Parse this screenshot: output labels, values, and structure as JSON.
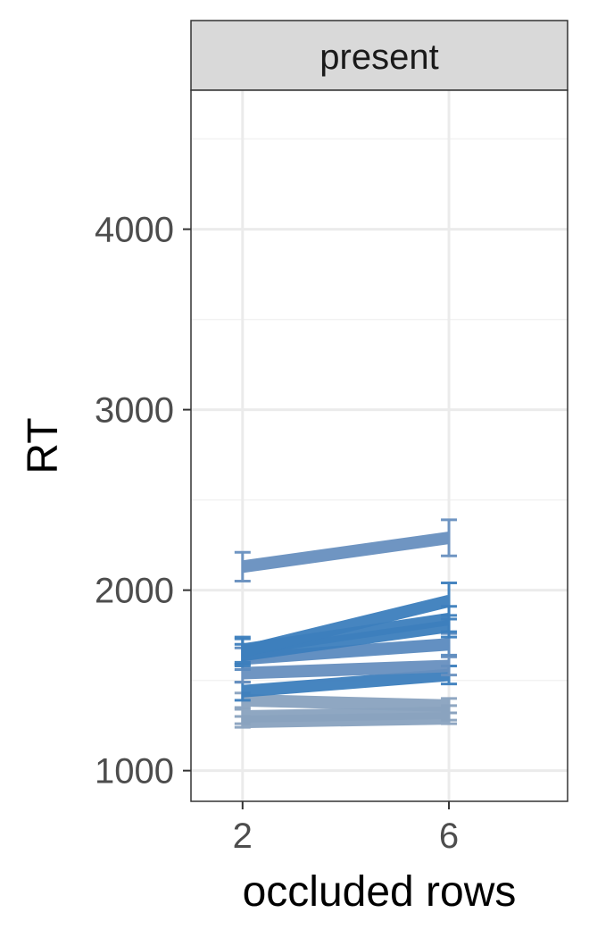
{
  "chart_data": {
    "type": "line",
    "facet_label": "present",
    "xlabel": "occluded rows",
    "ylabel": "RT",
    "x": [
      2,
      6
    ],
    "x_ticks": [
      "2",
      "6"
    ],
    "y_ticks": [
      "1000",
      "2000",
      "3000",
      "4000"
    ],
    "ylim": [
      830,
      4770
    ],
    "grid": true,
    "series": [
      {
        "values": [
          2130,
          2290
        ],
        "error": [
          80,
          100
        ],
        "color": "#6890bf"
      },
      {
        "values": [
          1660,
          1940
        ],
        "error": [
          70,
          100
        ],
        "color": "#3d7fbd"
      },
      {
        "values": [
          1670,
          1840
        ],
        "error": [
          70,
          70
        ],
        "color": "#3d7fbd"
      },
      {
        "values": [
          1640,
          1800
        ],
        "error": [
          60,
          60
        ],
        "color": "#3d7fbd"
      },
      {
        "values": [
          1620,
          1700
        ],
        "error": [
          60,
          60
        ],
        "color": "#5b8bbf"
      },
      {
        "values": [
          1540,
          1580
        ],
        "error": [
          50,
          50
        ],
        "color": "#6890bf"
      },
      {
        "values": [
          1440,
          1530
        ],
        "error": [
          50,
          50
        ],
        "color": "#3d7fbd"
      },
      {
        "values": [
          1390,
          1360
        ],
        "error": [
          40,
          40
        ],
        "color": "#8aa3bf"
      },
      {
        "values": [
          1300,
          1320
        ],
        "error": [
          40,
          40
        ],
        "color": "#8aa3bf"
      },
      {
        "values": [
          1270,
          1290
        ],
        "error": [
          30,
          30
        ],
        "color": "#8aa3bf"
      }
    ]
  }
}
